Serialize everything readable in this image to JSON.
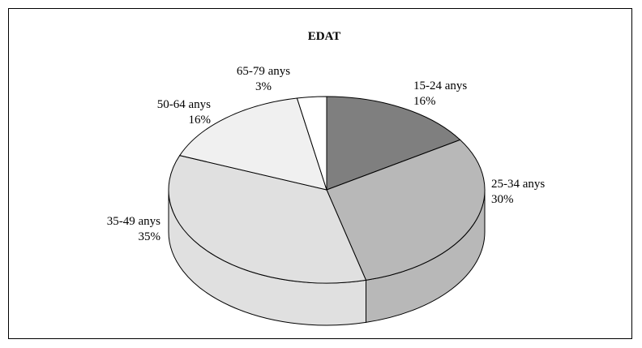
{
  "chart_data": {
    "type": "pie",
    "title": "EDAT",
    "categories": [
      "15-24 anys",
      "25-34 anys",
      "35-49 anys",
      "50-64 anys",
      "65-79 anys"
    ],
    "values": [
      16,
      30,
      35,
      16,
      3
    ],
    "percent_labels": [
      "16%",
      "30%",
      "35%",
      "16%",
      "3%"
    ],
    "colors": [
      "#7f7f7f",
      "#b8b8b8",
      "#e0e0e0",
      "#f0f0f0",
      "#ffffff"
    ],
    "style": "3d"
  }
}
